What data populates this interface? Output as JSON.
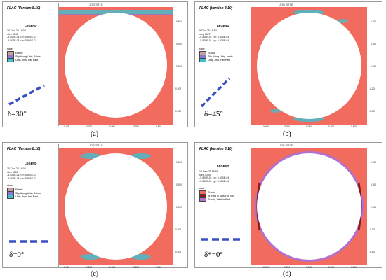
{
  "panels": [
    {
      "job_title": "JOB TITLE",
      "flac": "FLAC (Version 8.10)",
      "legend_title": "LEGEND",
      "date": "10-Dec-25 18:08",
      "step": "step    3546",
      "range1": "-5.500E-01 <x< 5.500E-01",
      "range2": "-5.500E-01 <y< 5.500E-01",
      "state_label": "state",
      "keys": [
        "Elastic",
        "Slip Along Ubiq. Joints",
        "Ubiq. Jnts. Fail Past"
      ],
      "key_colors": [
        "#c9a0a0",
        "#8a7ad0",
        "#3ec0d0"
      ],
      "delta": "δ=30°",
      "caption": "(a)",
      "y_ticks": [
        "0.400",
        "0.200",
        "0.000",
        "-0.200",
        "-0.400"
      ],
      "x_ticks": [
        "-0.400",
        "-0.200",
        "0.000",
        "0.200",
        "0.400"
      ]
    },
    {
      "job_title": "JOB TITLE",
      "flac": "FLAC (Version 8.10)",
      "legend_title": "LEGEND",
      "date": "9-Dec-25 16:14",
      "step": "step    9627",
      "range1": "-5.500E-01 <x< 5.500E-01",
      "range2": "-5.500E-01 <y< 5.500E-01",
      "state_label": "state",
      "keys": [
        "Elastic",
        "Slip Along Ubiq. Joints",
        "Ubiq. Jnts. Fail Past"
      ],
      "key_colors": [
        "#c9a0a0",
        "#8a7ad0",
        "#3ec0d0"
      ],
      "delta": "δ=45°",
      "caption": "(b)",
      "y_ticks": [
        "0.400",
        "0.200",
        "0.000",
        "-0.200",
        "-0.400"
      ],
      "x_ticks": [
        "-0.400",
        "-0.200",
        "0.000",
        "0.200",
        "0.400"
      ]
    },
    {
      "job_title": "JOB TITLE",
      "flac": "FLAC (Version 8.10)",
      "legend_title": "LEGEND",
      "date": "10-Dec-25 16:06",
      "step": "step    6053",
      "range1": "-5.500E-01 <x< 5.500E-01",
      "range2": "-5.500E-01 <y< 5.500E-01",
      "state_label": "state",
      "keys": [
        "Elastic",
        "Slip Along Ubiq. Joints",
        "Ubiq. Jnts. Fail Past"
      ],
      "key_colors": [
        "#c9a0a0",
        "#8a7ad0",
        "#3ec0d0"
      ],
      "delta": "δ=0°",
      "caption": "(c)",
      "y_ticks": [
        "0.400",
        "0.200",
        "0.000",
        "-0.200",
        "-0.400"
      ],
      "x_ticks": [
        "-0.400",
        "-0.200",
        "0.000",
        "0.200",
        "0.400"
      ]
    },
    {
      "job_title": "JOB TITLE",
      "flac": "FLAC (Version 8.10)",
      "legend_title": "LEGEND",
      "date": "10-Dec-25 16:55",
      "step": "step    4395",
      "range1": "-5.500E-01 <x< 5.500E-01",
      "range2": "-5.500E-01 <y< 5.500E-01",
      "state_label": "state",
      "keys": [
        "Elastic",
        "At Yield in Shear or Vol.",
        "Elastic, Yield in Past"
      ],
      "key_colors": [
        "#f26b5f",
        "#8b1a1a",
        "#b070d0"
      ],
      "delta": "δ*=0°",
      "caption": "(d)",
      "y_ticks": [
        "0.400",
        "0.200",
        "0.000",
        "-0.200",
        "-0.400"
      ],
      "x_ticks": [
        "-0.400",
        "-0.200",
        "0.000",
        "0.200",
        "0.400"
      ]
    }
  ],
  "colors": {
    "rock": "#f26b5f",
    "ubiq_fail": "#3ec0d0",
    "yield_past": "#b070d0",
    "yield_now": "#8b1a1a",
    "joint_dash": "#3a4fc0"
  }
}
